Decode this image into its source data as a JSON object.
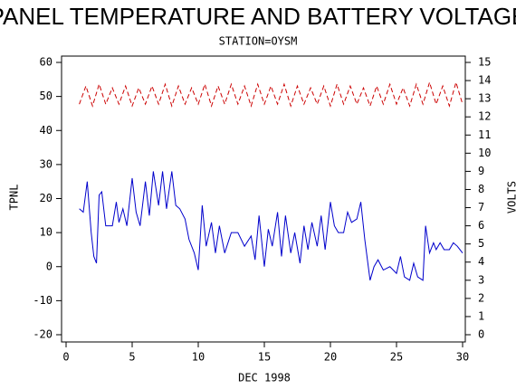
{
  "chart_data": {
    "type": "line",
    "title": "PANEL TEMPERATURE AND BATTERY VOLTAGE",
    "subtitle": "STATION=OYSM",
    "x_label": "DEC 1998",
    "y_label": "TPNL",
    "y2_label": "VOLTS",
    "xlim": [
      0,
      30
    ],
    "xticks": [
      0,
      5,
      10,
      15,
      20,
      25,
      30
    ],
    "ylim": [
      -20,
      60
    ],
    "yticks": [
      -20,
      -10,
      0,
      10,
      20,
      30,
      40,
      50,
      60
    ],
    "y2lim": [
      0,
      15
    ],
    "y2ticks": [
      0,
      1,
      2,
      3,
      4,
      5,
      6,
      7,
      8,
      9,
      10,
      11,
      12,
      13,
      14,
      15
    ],
    "series": [
      {
        "color": "#0000cc",
        "axis": "y",
        "x": [
          1,
          1.3,
          1.6,
          1.9,
          2.1,
          2.3,
          2.5,
          2.7,
          3,
          3.5,
          3.8,
          4,
          4.3,
          4.6,
          5,
          5.3,
          5.6,
          6,
          6.3,
          6.6,
          7,
          7.3,
          7.6,
          8,
          8.3,
          8.6,
          9,
          9.3,
          9.7,
          10,
          10.3,
          10.6,
          11,
          11.3,
          11.6,
          12,
          12.5,
          13,
          13.5,
          14,
          14.3,
          14.6,
          15,
          15.3,
          15.6,
          16,
          16.3,
          16.6,
          17,
          17.3,
          17.7,
          18,
          18.3,
          18.6,
          19,
          19.3,
          19.6,
          20,
          20.3,
          20.6,
          21,
          21.3,
          21.6,
          22,
          22.3,
          22.6,
          23,
          23.3,
          23.6,
          24,
          24.5,
          25,
          25.3,
          25.6,
          26,
          26.3,
          26.6,
          27,
          27.2,
          27.5,
          27.8,
          28,
          28.3,
          28.6,
          29,
          29.3,
          29.6,
          30
        ],
        "values": [
          17,
          16,
          25,
          10,
          3,
          1,
          21,
          22,
          12,
          12,
          19,
          13,
          17,
          12,
          26,
          16,
          12,
          25,
          15,
          28,
          18,
          28,
          17,
          28,
          18,
          17,
          14,
          8,
          4,
          -1,
          18,
          6,
          13,
          4,
          12,
          4,
          10,
          10,
          6,
          9,
          2,
          15,
          0,
          11,
          6,
          16,
          3,
          15,
          4,
          10,
          1,
          12,
          5,
          13,
          6,
          15,
          5,
          19,
          12,
          10,
          10,
          16,
          13,
          14,
          19,
          8,
          -4,
          0,
          2,
          -1,
          0,
          -2,
          3,
          -3,
          -4,
          1,
          -3,
          -4,
          12,
          4,
          7,
          5,
          7,
          5,
          5,
          7,
          6,
          4
        ]
      },
      {
        "color": "#cc0000",
        "axis": "y2",
        "x": [
          1,
          1.5,
          2,
          2.5,
          3,
          3.5,
          4,
          4.5,
          5,
          5.5,
          6,
          6.5,
          7,
          7.5,
          8,
          8.5,
          9,
          9.5,
          10,
          10.5,
          11,
          11.5,
          12,
          12.5,
          13,
          13.5,
          14,
          14.5,
          15,
          15.5,
          16,
          16.5,
          17,
          17.5,
          18,
          18.5,
          19,
          19.5,
          20,
          20.5,
          21,
          21.5,
          22,
          22.5,
          23,
          23.5,
          24,
          24.5,
          25,
          25.5,
          26,
          26.5,
          27,
          27.5,
          28,
          28.5,
          29,
          29.5,
          30
        ],
        "values": [
          12.7,
          13.7,
          12.6,
          13.8,
          12.7,
          13.6,
          12.7,
          13.7,
          12.6,
          13.6,
          12.7,
          13.7,
          12.7,
          13.8,
          12.6,
          13.7,
          12.7,
          13.6,
          12.7,
          13.8,
          12.6,
          13.7,
          12.7,
          13.8,
          12.7,
          13.7,
          12.6,
          13.8,
          12.7,
          13.7,
          12.7,
          13.8,
          12.6,
          13.7,
          12.7,
          13.6,
          12.7,
          13.7,
          12.6,
          13.8,
          12.7,
          13.7,
          12.7,
          13.6,
          12.6,
          13.7,
          12.7,
          13.8,
          12.7,
          13.6,
          12.6,
          13.8,
          12.7,
          13.9,
          12.7,
          13.7,
          12.6,
          13.9,
          12.7
        ]
      }
    ]
  }
}
